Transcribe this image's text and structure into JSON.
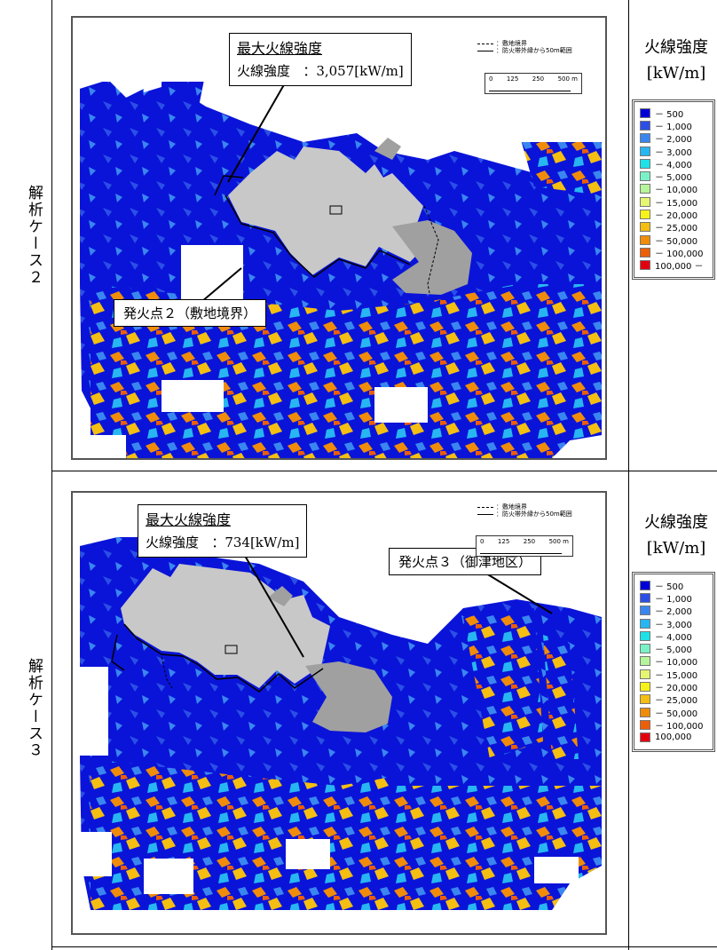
{
  "cases": [
    {
      "label": "解析ケース２",
      "callout": {
        "title": "最大火線強度",
        "name": "火線強度",
        "value": "：3,057[kW/m]"
      },
      "fire_point": "発火点２（敷地境界）"
    },
    {
      "label": "解析ケース３",
      "callout": {
        "title": "最大火線強度",
        "name": "火線強度",
        "value": "：734[kW/m]"
      },
      "fire_point": "発火点３（御津地区）"
    }
  ],
  "map_legend": {
    "boundary": "：敷地境界",
    "range": "：防火帯外縁から50m範囲"
  },
  "scale": {
    "ticks": [
      "0",
      "125",
      "250",
      "500 m"
    ]
  },
  "legend_title": "火線強度",
  "legend_unit": "[kW/m]",
  "legend_case2": [
    "－ 500",
    "－ 1,000",
    "－ 2,000",
    "－ 3,000",
    "－ 4,000",
    "－ 5,000",
    "－ 10,000",
    "－ 15,000",
    "－ 20,000",
    "－ 25,000",
    "－ 50,000",
    "－ 100,000",
    "100,000 －"
  ],
  "legend_case3": [
    "－ 500",
    "－ 1,000",
    "－ 2,000",
    "－ 3,000",
    "－ 4,000",
    "－ 5,000",
    "－ 10,000",
    "－ 15,000",
    "－ 20,000",
    "－ 25,000",
    "－ 50,000",
    "－ 100,000",
    "100,000"
  ],
  "legend_colors": [
    "#0000d8",
    "#2b4fe6",
    "#3a86f0",
    "#27b6f2",
    "#1de3e8",
    "#7af2c8",
    "#b6f59a",
    "#e6f572",
    "#f6f21a",
    "#f4be12",
    "#f08c0a",
    "#ec5e08",
    "#e3000f"
  ],
  "colors": {
    "terrain": "#0a14d8",
    "site_light": "#c8c8c8",
    "site_dark": "#a0a0a0",
    "frame": "#555555"
  }
}
